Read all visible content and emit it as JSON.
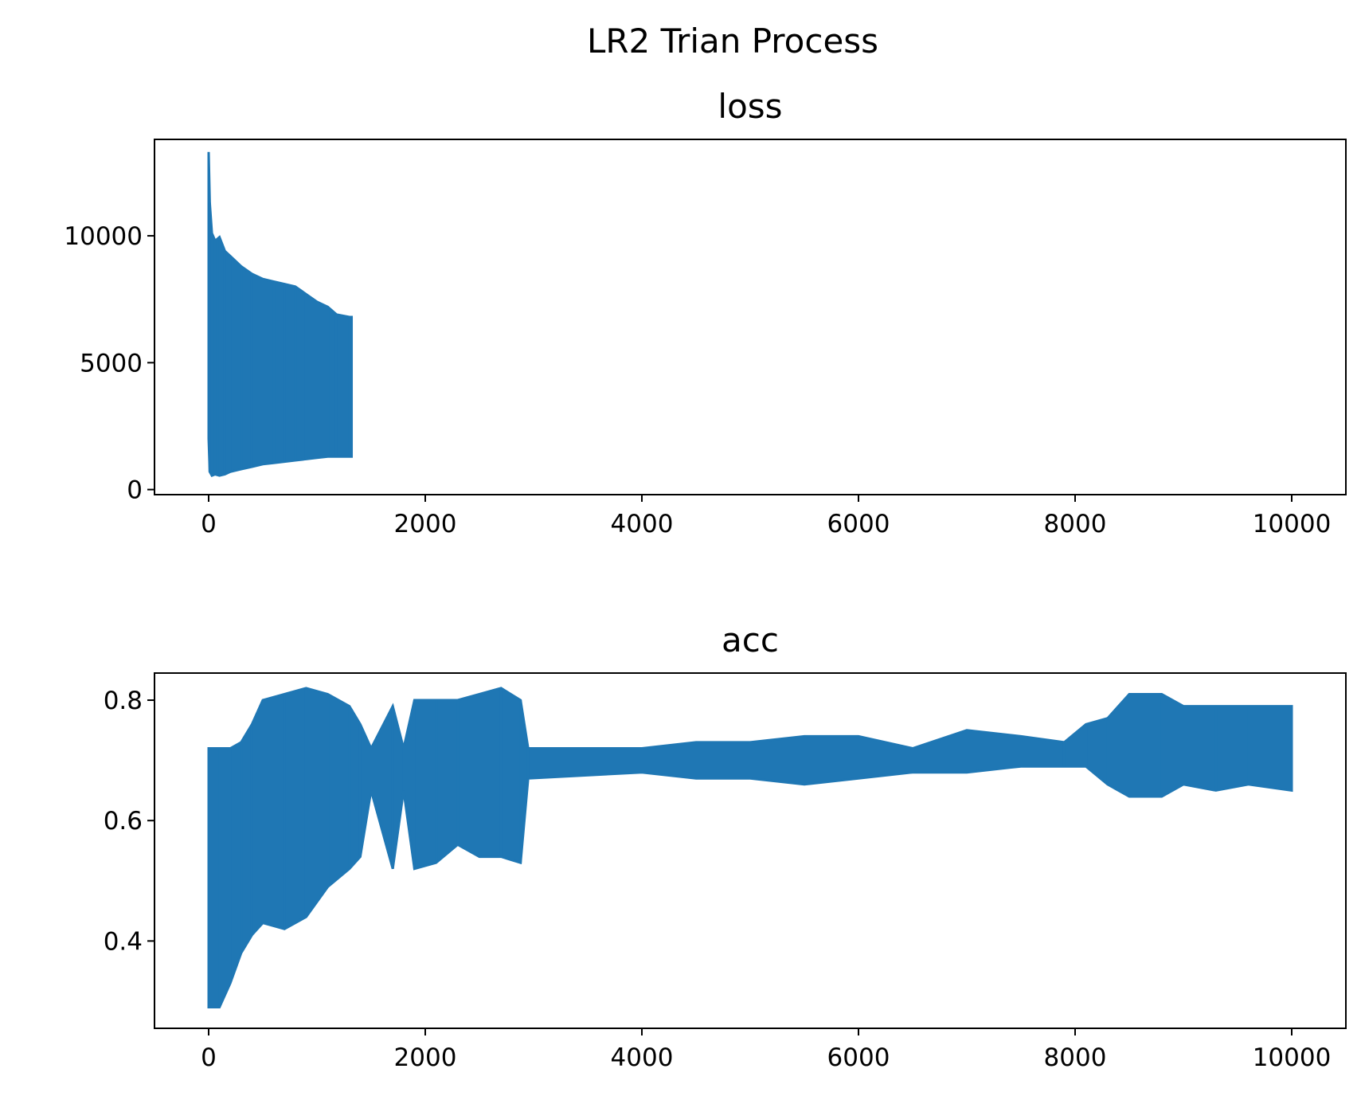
{
  "figure_title": "LR2 Trian Process",
  "series_color": "#1f77b4",
  "chart_data": [
    {
      "type": "line",
      "title": "loss",
      "xlabel": "",
      "ylabel": "",
      "xlim": [
        -500,
        10500
      ],
      "ylim": [
        -200,
        13800
      ],
      "xticks": [
        0,
        2000,
        4000,
        6000,
        8000,
        10000
      ],
      "yticks": [
        0,
        5000,
        10000
      ],
      "grid": false,
      "legend": "none",
      "observed_x_range": [
        0,
        1320
      ],
      "envelope": [
        {
          "x": 0,
          "lower": 2000,
          "upper": 13300
        },
        {
          "x": 10,
          "lower": 700,
          "upper": 11300
        },
        {
          "x": 30,
          "lower": 550,
          "upper": 10100
        },
        {
          "x": 60,
          "lower": 600,
          "upper": 9800
        },
        {
          "x": 100,
          "lower": 550,
          "upper": 9950
        },
        {
          "x": 150,
          "lower": 600,
          "upper": 9400
        },
        {
          "x": 200,
          "lower": 700,
          "upper": 9200
        },
        {
          "x": 300,
          "lower": 800,
          "upper": 8800
        },
        {
          "x": 400,
          "lower": 900,
          "upper": 8500
        },
        {
          "x": 500,
          "lower": 1000,
          "upper": 8300
        },
        {
          "x": 600,
          "lower": 1050,
          "upper": 8200
        },
        {
          "x": 700,
          "lower": 1100,
          "upper": 8100
        },
        {
          "x": 800,
          "lower": 1150,
          "upper": 8000
        },
        {
          "x": 900,
          "lower": 1200,
          "upper": 7700
        },
        {
          "x": 1000,
          "lower": 1250,
          "upper": 7400
        },
        {
          "x": 1100,
          "lower": 1300,
          "upper": 7200
        },
        {
          "x": 1180,
          "lower": 1300,
          "upper": 6900
        },
        {
          "x": 1300,
          "lower": 1300,
          "upper": 6800
        },
        {
          "x": 1320,
          "lower": 1300,
          "upper": 6800
        }
      ]
    },
    {
      "type": "line",
      "title": "acc",
      "xlabel": "",
      "ylabel": "",
      "xlim": [
        -500,
        10500
      ],
      "ylim": [
        0.255,
        0.845
      ],
      "xticks": [
        0,
        2000,
        4000,
        6000,
        8000,
        10000
      ],
      "yticks": [
        0.4,
        0.6,
        0.8
      ],
      "grid": false,
      "legend": "none",
      "observed_x_range": [
        0,
        10000
      ],
      "envelope": [
        {
          "x": 0,
          "lower": 0.29,
          "upper": 0.72
        },
        {
          "x": 100,
          "lower": 0.29,
          "upper": 0.72
        },
        {
          "x": 200,
          "lower": 0.33,
          "upper": 0.72
        },
        {
          "x": 300,
          "lower": 0.38,
          "upper": 0.73
        },
        {
          "x": 400,
          "lower": 0.41,
          "upper": 0.76
        },
        {
          "x": 500,
          "lower": 0.43,
          "upper": 0.8
        },
        {
          "x": 700,
          "lower": 0.42,
          "upper": 0.81
        },
        {
          "x": 900,
          "lower": 0.44,
          "upper": 0.82
        },
        {
          "x": 1100,
          "lower": 0.49,
          "upper": 0.81
        },
        {
          "x": 1300,
          "lower": 0.52,
          "upper": 0.79
        },
        {
          "x": 1400,
          "lower": 0.54,
          "upper": 0.76
        },
        {
          "x": 1500,
          "lower": 0.65,
          "upper": 0.72
        },
        {
          "x": 1700,
          "lower": 0.52,
          "upper": 0.79
        },
        {
          "x": 1800,
          "lower": 0.65,
          "upper": 0.72
        },
        {
          "x": 1900,
          "lower": 0.52,
          "upper": 0.8
        },
        {
          "x": 2100,
          "lower": 0.53,
          "upper": 0.8
        },
        {
          "x": 2300,
          "lower": 0.56,
          "upper": 0.8
        },
        {
          "x": 2500,
          "lower": 0.54,
          "upper": 0.81
        },
        {
          "x": 2700,
          "lower": 0.54,
          "upper": 0.82
        },
        {
          "x": 2880,
          "lower": 0.53,
          "upper": 0.8
        },
        {
          "x": 2950,
          "lower": 0.67,
          "upper": 0.72
        },
        {
          "x": 4000,
          "lower": 0.68,
          "upper": 0.72
        },
        {
          "x": 4500,
          "lower": 0.67,
          "upper": 0.73
        },
        {
          "x": 5000,
          "lower": 0.67,
          "upper": 0.73
        },
        {
          "x": 5500,
          "lower": 0.66,
          "upper": 0.74
        },
        {
          "x": 6000,
          "lower": 0.67,
          "upper": 0.74
        },
        {
          "x": 6500,
          "lower": 0.68,
          "upper": 0.72
        },
        {
          "x": 7000,
          "lower": 0.68,
          "upper": 0.75
        },
        {
          "x": 7500,
          "lower": 0.69,
          "upper": 0.74
        },
        {
          "x": 7900,
          "lower": 0.69,
          "upper": 0.73
        },
        {
          "x": 8100,
          "lower": 0.69,
          "upper": 0.76
        },
        {
          "x": 8300,
          "lower": 0.66,
          "upper": 0.77
        },
        {
          "x": 8500,
          "lower": 0.64,
          "upper": 0.81
        },
        {
          "x": 8800,
          "lower": 0.64,
          "upper": 0.81
        },
        {
          "x": 9000,
          "lower": 0.66,
          "upper": 0.79
        },
        {
          "x": 9300,
          "lower": 0.65,
          "upper": 0.79
        },
        {
          "x": 9600,
          "lower": 0.66,
          "upper": 0.79
        },
        {
          "x": 10000,
          "lower": 0.65,
          "upper": 0.79
        }
      ]
    }
  ]
}
